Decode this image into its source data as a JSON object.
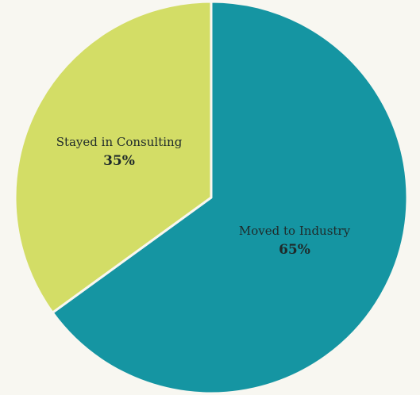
{
  "chart_data": {
    "type": "pie",
    "slices": [
      {
        "label": "Moved to Industry",
        "value": 65,
        "value_label": "65%",
        "color": "#1595a2"
      },
      {
        "label": "Stayed in Consulting",
        "value": 35,
        "value_label": "35%",
        "color": "#d3dd66"
      }
    ],
    "start_angle": "12 o'clock",
    "direction": "clockwise",
    "slice_border_color": "#f8f7f1",
    "background": "#f8f7f1"
  }
}
